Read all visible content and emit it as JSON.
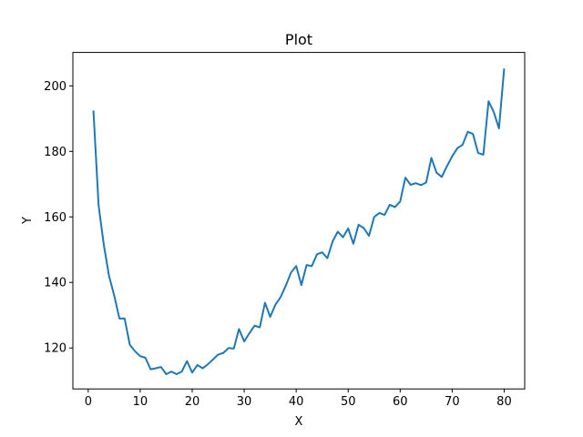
{
  "chart_data": {
    "type": "line",
    "title": "Plot",
    "xlabel": "X",
    "ylabel": "Y",
    "xlim": [
      -2.95,
      83.95
    ],
    "ylim": [
      107.5,
      210.2
    ],
    "xticks": [
      0,
      10,
      20,
      30,
      40,
      50,
      60,
      70,
      80
    ],
    "yticks": [
      120,
      140,
      160,
      180,
      200
    ],
    "grid": false,
    "legend": "none",
    "series": [
      {
        "color": "#1f77b4",
        "x": [
          1,
          2,
          3,
          4,
          5,
          6,
          7,
          8,
          9,
          10,
          11,
          12,
          13,
          14,
          15,
          16,
          17,
          18,
          19,
          20,
          21,
          22,
          23,
          24,
          25,
          26,
          27,
          28,
          29,
          30,
          31,
          32,
          33,
          34,
          35,
          36,
          37,
          38,
          39,
          40,
          41,
          42,
          43,
          44,
          45,
          46,
          47,
          48,
          49,
          50,
          51,
          52,
          53,
          54,
          55,
          56,
          57,
          58,
          59,
          60,
          61,
          62,
          63,
          64,
          65,
          66,
          67,
          68,
          69,
          70,
          71,
          72,
          73,
          74,
          75,
          76,
          77,
          78,
          79,
          80
        ],
        "y": [
          192.5,
          163.5,
          151.5,
          142,
          136,
          129,
          129,
          121,
          119,
          117.5,
          117,
          113.5,
          113.8,
          114.2,
          112,
          112.8,
          112,
          112.8,
          116,
          112.5,
          114.8,
          113.8,
          115,
          116.5,
          118,
          118.5,
          120,
          119.8,
          125.8,
          122,
          124.5,
          126.8,
          126.3,
          133.8,
          129.5,
          133.2,
          135.5,
          139,
          143,
          145,
          139.2,
          145.3,
          145,
          148.6,
          149.2,
          147.4,
          152.5,
          155.5,
          153.8,
          156.5,
          151.8,
          157.6,
          156.6,
          154.2,
          160,
          161.2,
          160.6,
          163.7,
          163,
          164.7,
          172,
          169.8,
          170.3,
          169.7,
          170.5,
          178,
          173.5,
          172.2,
          175.5,
          178.5,
          181,
          182,
          186,
          185.3,
          179.5,
          179,
          195.3,
          192,
          187,
          205.3
        ]
      }
    ]
  }
}
